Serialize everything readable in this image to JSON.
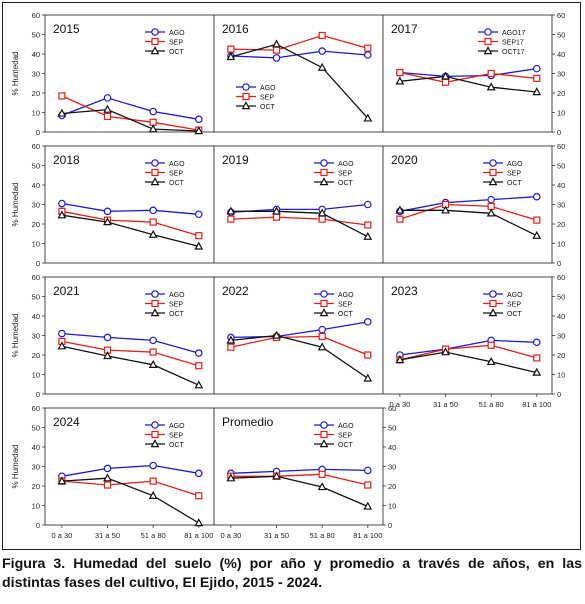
{
  "figure": {
    "caption": "Figura 3. Humedad del suelo (%) por año y promedio a través de años, en las distintas fases del cultivo, El Ejido, 2015 - 2024."
  },
  "y_axis_label": "% Humedad",
  "categories": [
    "0 a 30",
    "31 a 50",
    "51 a 80",
    "81 a 100"
  ],
  "colors": {
    "AGO": "#1a1ad6",
    "SEP": "#e0201b",
    "OCT": "#111111"
  },
  "markers": {
    "AGO": "circle",
    "SEP": "square",
    "OCT": "triangle"
  },
  "chart_data": [
    {
      "type": "line",
      "title": "2015",
      "ylim": [
        0,
        60
      ],
      "legend": "top-right",
      "categories": [
        "0 a 30",
        "31 a 50",
        "51 a 80",
        "81 a 100"
      ],
      "series": [
        {
          "name": "AGO",
          "values": [
            8.5,
            17.5,
            10.5,
            6.5
          ]
        },
        {
          "name": "SEP",
          "values": [
            18.5,
            8,
            5,
            1
          ]
        },
        {
          "name": "OCT",
          "values": [
            9.5,
            11.5,
            1.5,
            0.5
          ]
        }
      ]
    },
    {
      "type": "line",
      "title": "2016",
      "ylim": [
        0,
        60
      ],
      "legend": "middle-left",
      "categories": [
        "0 a 30",
        "31 a 50",
        "51 a 80",
        "81 a 100"
      ],
      "series": [
        {
          "name": "AGO",
          "values": [
            39,
            38,
            41.5,
            39.5
          ]
        },
        {
          "name": "SEP",
          "values": [
            42.5,
            42,
            49.5,
            43
          ]
        },
        {
          "name": "OCT",
          "values": [
            38.5,
            45,
            33,
            7
          ]
        }
      ]
    },
    {
      "type": "line",
      "title": "2017",
      "ylim": [
        0,
        60
      ],
      "legend": "top-right",
      "categories": [
        "0 a 30",
        "31 a 50",
        "51 a 80",
        "81 a 100"
      ],
      "series": [
        {
          "name": "AGO17",
          "values": [
            30.5,
            28.5,
            29,
            32.5
          ]
        },
        {
          "name": "SEP17",
          "values": [
            30.5,
            25.5,
            30,
            27.5
          ]
        },
        {
          "name": "OCT17",
          "values": [
            26,
            28.5,
            23,
            20.5
          ]
        }
      ]
    },
    {
      "type": "line",
      "title": "2018",
      "ylim": [
        0,
        60
      ],
      "legend": "top-right",
      "categories": [
        "0 a 30",
        "31 a 50",
        "51 a 80",
        "81 a 100"
      ],
      "series": [
        {
          "name": "AGO",
          "values": [
            30.5,
            26.5,
            27,
            25
          ]
        },
        {
          "name": "SEP",
          "values": [
            26.5,
            22,
            21,
            14
          ]
        },
        {
          "name": "OCT",
          "values": [
            24.5,
            21,
            14.5,
            8.5
          ]
        }
      ]
    },
    {
      "type": "line",
      "title": "2019",
      "ylim": [
        0,
        60
      ],
      "legend": "top-right",
      "categories": [
        "0 a 30",
        "31 a 50",
        "51 a 80",
        "81 a 100"
      ],
      "series": [
        {
          "name": "AGO",
          "values": [
            26,
            27.5,
            27.5,
            30
          ]
        },
        {
          "name": "SEP",
          "values": [
            22.5,
            23.5,
            22.5,
            19.5
          ]
        },
        {
          "name": "OCT",
          "values": [
            26.5,
            26.5,
            25.5,
            13.5
          ]
        }
      ]
    },
    {
      "type": "line",
      "title": "2020",
      "ylim": [
        0,
        60
      ],
      "legend": "top-right",
      "categories": [
        "0 a 30",
        "31 a 50",
        "51 a 80",
        "81 a 100"
      ],
      "series": [
        {
          "name": "AGO",
          "values": [
            26.5,
            31,
            32.5,
            34
          ]
        },
        {
          "name": "SEP",
          "values": [
            22.5,
            30,
            29,
            22
          ]
        },
        {
          "name": "OCT",
          "values": [
            27,
            27,
            25.5,
            14
          ]
        }
      ]
    },
    {
      "type": "line",
      "title": "2021",
      "ylim": [
        0,
        60
      ],
      "legend": "top-right",
      "categories": [
        "0 a 30",
        "31 a 50",
        "51 a 80",
        "81 a 100"
      ],
      "series": [
        {
          "name": "AGO",
          "values": [
            31,
            29,
            27.5,
            21
          ]
        },
        {
          "name": "SEP",
          "values": [
            27,
            22.5,
            21.5,
            14.5
          ]
        },
        {
          "name": "OCT",
          "values": [
            24.5,
            19.5,
            15,
            4.5
          ]
        }
      ]
    },
    {
      "type": "line",
      "title": "2022",
      "ylim": [
        0,
        60
      ],
      "legend": "top-right",
      "categories": [
        "0 a 30",
        "31 a 50",
        "51 a 80",
        "81 a 100"
      ],
      "series": [
        {
          "name": "AGO",
          "values": [
            29,
            29.5,
            33,
            37
          ]
        },
        {
          "name": "SEP",
          "values": [
            24,
            29,
            29.5,
            20
          ]
        },
        {
          "name": "OCT",
          "values": [
            27.5,
            30,
            24,
            8
          ]
        }
      ]
    },
    {
      "type": "line",
      "title": "2023",
      "ylim": [
        0,
        60
      ],
      "legend": "top-right",
      "categories": [
        "0 a 30",
        "31 a 50",
        "51 a 80",
        "81 a 100"
      ],
      "series": [
        {
          "name": "AGO",
          "values": [
            20,
            23,
            27.5,
            26.5
          ]
        },
        {
          "name": "SEP",
          "values": [
            17.5,
            23,
            25,
            18.5
          ]
        },
        {
          "name": "OCT",
          "values": [
            17.5,
            21.5,
            16.5,
            11
          ]
        }
      ]
    },
    {
      "type": "line",
      "title": "2024",
      "ylim": [
        0,
        60
      ],
      "legend": "top-right",
      "categories": [
        "0 a 30",
        "31 a 50",
        "51 a 80",
        "81 a 100"
      ],
      "series": [
        {
          "name": "AGO",
          "values": [
            25,
            29,
            30.5,
            26.5
          ]
        },
        {
          "name": "SEP",
          "values": [
            22.5,
            20.5,
            22.5,
            15
          ]
        },
        {
          "name": "OCT",
          "values": [
            22.5,
            24,
            15,
            1
          ]
        }
      ]
    },
    {
      "type": "line",
      "title": "Promedio",
      "ylim": [
        0,
        60
      ],
      "legend": "top-right",
      "categories": [
        "0 a 30",
        "31 a 50",
        "51 a 80",
        "81 a 100"
      ],
      "series": [
        {
          "name": "AGO",
          "values": [
            26.5,
            27.5,
            28.5,
            28
          ]
        },
        {
          "name": "SEP",
          "values": [
            25,
            25,
            26,
            20.5
          ]
        },
        {
          "name": "OCT",
          "values": [
            24,
            25,
            19.5,
            9.5
          ]
        }
      ]
    }
  ],
  "y_ticks": [
    0,
    10,
    20,
    30,
    40,
    50,
    60
  ]
}
